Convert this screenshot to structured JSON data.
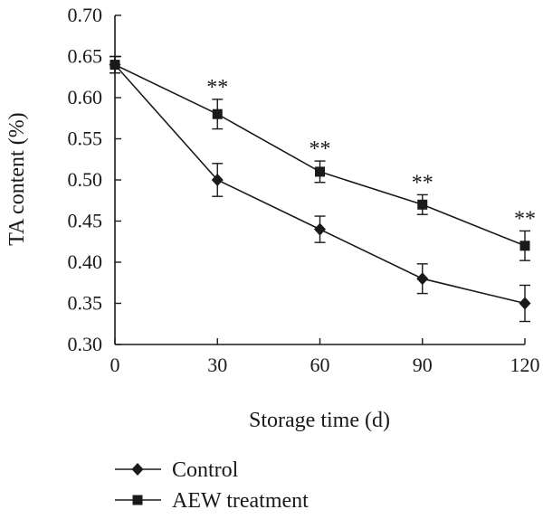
{
  "chart_data": {
    "type": "line",
    "xlabel": "Storage time (d)",
    "ylabel": "TA content (%)",
    "x": [
      0,
      30,
      60,
      90,
      120
    ],
    "xlim": [
      0,
      120
    ],
    "ylim": [
      0.3,
      0.7
    ],
    "xticks": [
      "0",
      "30",
      "60",
      "90",
      "120"
    ],
    "yticks": [
      "0.30",
      "0.35",
      "0.40",
      "0.45",
      "0.50",
      "0.55",
      "0.60",
      "0.65",
      "0.70"
    ],
    "grid": false,
    "legend_position": "bottom",
    "series": [
      {
        "name": "Control",
        "marker": "diamond",
        "values": [
          0.64,
          0.5,
          0.44,
          0.38,
          0.35
        ],
        "errors": [
          0.01,
          0.02,
          0.016,
          0.018,
          0.022
        ]
      },
      {
        "name": "AEW treatment",
        "marker": "square",
        "values": [
          0.64,
          0.58,
          0.51,
          0.47,
          0.42
        ],
        "errors": [
          0.01,
          0.018,
          0.013,
          0.012,
          0.018
        ]
      }
    ],
    "annotations": [
      {
        "x": 30,
        "text": "**"
      },
      {
        "x": 60,
        "text": "**"
      },
      {
        "x": 90,
        "text": "**"
      },
      {
        "x": 120,
        "text": "**"
      }
    ]
  }
}
